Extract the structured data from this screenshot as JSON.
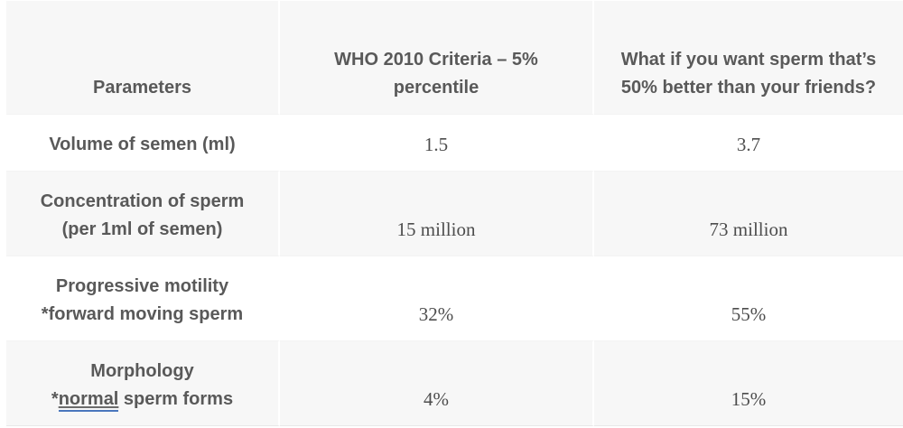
{
  "table": {
    "columns": [
      {
        "label": "Parameters"
      },
      {
        "label": "WHO 2010 Criteria – 5% percentile"
      },
      {
        "label": "What if you want sperm that’s 50% better than your friends?"
      }
    ],
    "rows": [
      {
        "param": "Volume of semen (ml)",
        "who": "1.5",
        "better": "3.7"
      },
      {
        "param": "Concentration of sperm\n(per 1ml of semen)",
        "who": "15 million",
        "better": "73 million"
      },
      {
        "param": "Progressive motility\n*forward moving sperm",
        "who": "32%",
        "better": "55%"
      },
      {
        "param_title": "Morphology",
        "param_prefix": "*",
        "param_link": "normal",
        "param_suffix": " sperm forms",
        "who": "4%",
        "better": "15%"
      }
    ]
  },
  "colors": {
    "zebra_row_bg": "#f7f7f7",
    "white_row_bg": "#ffffff",
    "label_text": "#595959",
    "value_text": "#4d4d4d",
    "link_underline_blue": "#4a77bd",
    "table_bottom_border": "#e8e8e8"
  }
}
